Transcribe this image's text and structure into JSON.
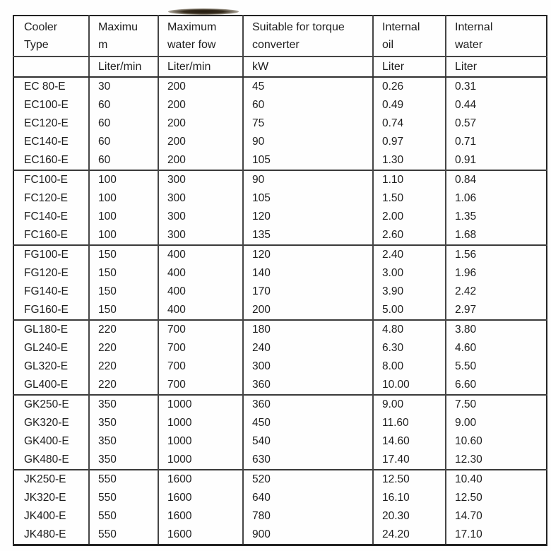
{
  "artifact": {
    "name": "scan-smudge"
  },
  "colors": {
    "border_outer": "#232323",
    "border_inner": "#454545",
    "text": "#1e1e1e",
    "background": "#fefefe"
  },
  "table": {
    "headers": [
      {
        "lines": [
          "Cooler",
          "Type"
        ]
      },
      {
        "lines": [
          "Maximu",
          "m"
        ]
      },
      {
        "lines": [
          "Maximum",
          "water fow"
        ]
      },
      {
        "lines": [
          "Suitable for torque",
          "converter"
        ]
      },
      {
        "lines": [
          "Internal",
          "oil"
        ]
      },
      {
        "lines": [
          "Internal",
          "water"
        ]
      }
    ],
    "units": [
      "",
      "Liter/min",
      "Liter/min",
      "kW",
      "Liter",
      "Liter"
    ],
    "groups": [
      {
        "name": "EC",
        "rows": [
          [
            "EC 80-E",
            "30",
            "200",
            "45",
            "0.26",
            "0.31"
          ],
          [
            "EC100-E",
            "60",
            "200",
            "60",
            "0.49",
            "0.44"
          ],
          [
            "EC120-E",
            "60",
            "200",
            "75",
            "0.74",
            "0.57"
          ],
          [
            "EC140-E",
            "60",
            "200",
            "90",
            "0.97",
            "0.71"
          ],
          [
            "EC160-E",
            "60",
            "200",
            "105",
            "1.30",
            "0.91"
          ]
        ]
      },
      {
        "name": "FC",
        "rows": [
          [
            "FC100-E",
            "100",
            "300",
            "90",
            "1.10",
            "0.84"
          ],
          [
            "FC120-E",
            "100",
            "300",
            "105",
            "1.50",
            "1.06"
          ],
          [
            "FC140-E",
            "100",
            "300",
            "120",
            "2.00",
            "1.35"
          ],
          [
            "FC160-E",
            "100",
            "300",
            "135",
            "2.60",
            "1.68"
          ]
        ]
      },
      {
        "name": "FG",
        "rows": [
          [
            "FG100-E",
            "150",
            "400",
            "120",
            "2.40",
            "1.56"
          ],
          [
            "FG120-E",
            "150",
            "400",
            "140",
            "3.00",
            "1.96"
          ],
          [
            "FG140-E",
            "150",
            "400",
            "170",
            "3.90",
            "2.42"
          ],
          [
            "FG160-E",
            "150",
            "400",
            "200",
            "5.00",
            "2.97"
          ]
        ]
      },
      {
        "name": "GL",
        "rows": [
          [
            "GL180-E",
            "220",
            "700",
            "180",
            "4.80",
            "3.80"
          ],
          [
            "GL240-E",
            "220",
            "700",
            "240",
            "6.30",
            "4.60"
          ],
          [
            "GL320-E",
            "220",
            "700",
            "300",
            "8.00",
            "5.50"
          ],
          [
            "GL400-E",
            "220",
            "700",
            "360",
            "10.00",
            "6.60"
          ]
        ]
      },
      {
        "name": "GK",
        "rows": [
          [
            "GK250-E",
            "350",
            "1000",
            "360",
            "9.00",
            "7.50"
          ],
          [
            "GK320-E",
            "350",
            "1000",
            "450",
            "11.60",
            "9.00"
          ],
          [
            "GK400-E",
            "350",
            "1000",
            "540",
            "14.60",
            "10.60"
          ],
          [
            "GK480-E",
            "350",
            "1000",
            "630",
            "17.40",
            "12.30"
          ]
        ]
      },
      {
        "name": "JK",
        "rows": [
          [
            "JK250-E",
            "550",
            "1600",
            "520",
            "12.50",
            "10.40"
          ],
          [
            "JK320-E",
            "550",
            "1600",
            "640",
            "16.10",
            "12.50"
          ],
          [
            "JK400-E",
            "550",
            "1600",
            "780",
            "20.30",
            "14.70"
          ],
          [
            "JK480-E",
            "550",
            "1600",
            "900",
            "24.20",
            "17.10"
          ]
        ]
      }
    ]
  }
}
